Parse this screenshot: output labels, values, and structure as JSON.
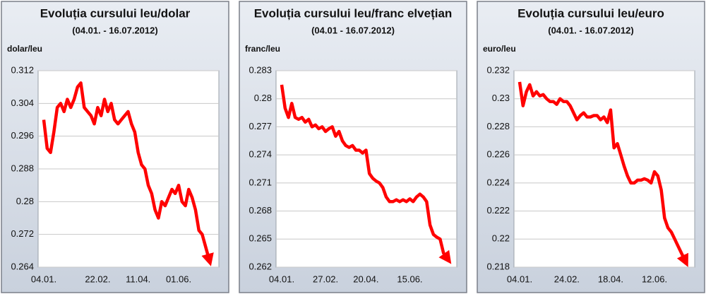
{
  "chart_data": [
    {
      "type": "line",
      "title": "Evoluția cursului leu/dolar",
      "subtitle": "(04.01. - 16.07.2012)",
      "y_label": "dolar/leu",
      "categories": [
        "04.01.",
        null,
        null,
        null,
        null,
        null,
        null,
        null,
        null,
        null,
        null,
        null,
        null,
        null,
        null,
        null,
        "22.02.",
        null,
        null,
        null,
        null,
        null,
        null,
        null,
        null,
        null,
        null,
        null,
        "11.04.",
        null,
        null,
        null,
        null,
        null,
        null,
        null,
        null,
        null,
        null,
        null,
        "01.06.",
        null,
        null,
        null,
        null,
        null,
        null,
        null,
        null,
        null
      ],
      "values": [
        0.3,
        0.293,
        0.292,
        0.297,
        0.303,
        0.304,
        0.302,
        0.305,
        0.303,
        0.305,
        0.308,
        0.309,
        0.303,
        0.302,
        0.301,
        0.299,
        0.303,
        0.301,
        0.305,
        0.302,
        0.304,
        0.3,
        0.299,
        0.3,
        0.301,
        0.302,
        0.299,
        0.297,
        0.292,
        0.289,
        0.288,
        0.284,
        0.282,
        0.278,
        0.276,
        0.28,
        0.279,
        0.281,
        0.283,
        0.282,
        0.284,
        0.28,
        0.279,
        0.283,
        0.281,
        0.278,
        0.273,
        0.272,
        0.269,
        0.266
      ],
      "color": "#ff0000",
      "ylim": [
        0.264,
        0.312
      ],
      "yticks": [
        0.264,
        0.272,
        0.28,
        0.288,
        0.296,
        0.304,
        0.312
      ],
      "grid": true
    },
    {
      "type": "line",
      "title": "Evoluția cursului leu/franc elvețian",
      "subtitle": "(04.01 - 16.07.2012)",
      "y_label": "franc/leu",
      "categories": [
        "04.01.",
        null,
        null,
        null,
        null,
        null,
        null,
        null,
        null,
        null,
        null,
        null,
        null,
        "27.02.",
        null,
        null,
        null,
        null,
        null,
        null,
        null,
        null,
        null,
        null,
        null,
        "20.04.",
        null,
        null,
        null,
        null,
        null,
        null,
        null,
        null,
        null,
        null,
        null,
        null,
        "15.06.",
        null,
        null,
        null,
        null,
        null,
        null,
        null,
        null,
        null,
        null,
        null
      ],
      "values": [
        0.2815,
        0.279,
        0.278,
        0.2795,
        0.278,
        0.2778,
        0.278,
        0.2775,
        0.2778,
        0.277,
        0.2772,
        0.2768,
        0.277,
        0.2765,
        0.2768,
        0.277,
        0.276,
        0.2765,
        0.2755,
        0.275,
        0.2748,
        0.275,
        0.2745,
        0.2745,
        0.2742,
        0.2745,
        0.272,
        0.2715,
        0.2712,
        0.271,
        0.2705,
        0.2695,
        0.269,
        0.269,
        0.2692,
        0.269,
        0.2692,
        0.269,
        0.2693,
        0.269,
        0.2695,
        0.2698,
        0.2695,
        0.269,
        0.2665,
        0.2655,
        0.2652,
        0.265,
        0.2635,
        0.263
      ],
      "color": "#ff0000",
      "ylim": [
        0.262,
        0.283
      ],
      "yticks": [
        0.262,
        0.265,
        0.268,
        0.271,
        0.274,
        0.277,
        0.28,
        0.283
      ],
      "grid": true
    },
    {
      "type": "line",
      "title": "Evoluția cursului leu/euro",
      "subtitle": "(04.01. - 16.07.2012)",
      "y_label": "euro/leu",
      "categories": [
        "04.01.",
        null,
        null,
        null,
        null,
        null,
        null,
        null,
        null,
        null,
        null,
        null,
        null,
        null,
        "24.02.",
        null,
        null,
        null,
        null,
        null,
        null,
        null,
        null,
        null,
        null,
        null,
        null,
        "18.04.",
        null,
        null,
        null,
        null,
        null,
        null,
        null,
        null,
        null,
        null,
        null,
        null,
        "12.06.",
        null,
        null,
        null,
        null,
        null,
        null,
        null,
        null,
        null
      ],
      "values": [
        0.2312,
        0.2295,
        0.2305,
        0.231,
        0.2302,
        0.2305,
        0.2302,
        0.2303,
        0.23,
        0.2298,
        0.2298,
        0.2296,
        0.23,
        0.2298,
        0.2298,
        0.2295,
        0.229,
        0.2285,
        0.2288,
        0.229,
        0.2287,
        0.2287,
        0.2288,
        0.2288,
        0.2285,
        0.2287,
        0.2283,
        0.2292,
        0.2265,
        0.2268,
        0.226,
        0.2252,
        0.2245,
        0.224,
        0.224,
        0.2242,
        0.2242,
        0.2243,
        0.2242,
        0.224,
        0.2248,
        0.2245,
        0.2235,
        0.2215,
        0.2208,
        0.2205,
        0.22,
        0.2195,
        0.219,
        0.2185
      ],
      "color": "#ff0000",
      "ylim": [
        0.218,
        0.232
      ],
      "yticks": [
        0.218,
        0.22,
        0.222,
        0.224,
        0.226,
        0.228,
        0.23,
        0.232
      ],
      "grid": true
    }
  ]
}
